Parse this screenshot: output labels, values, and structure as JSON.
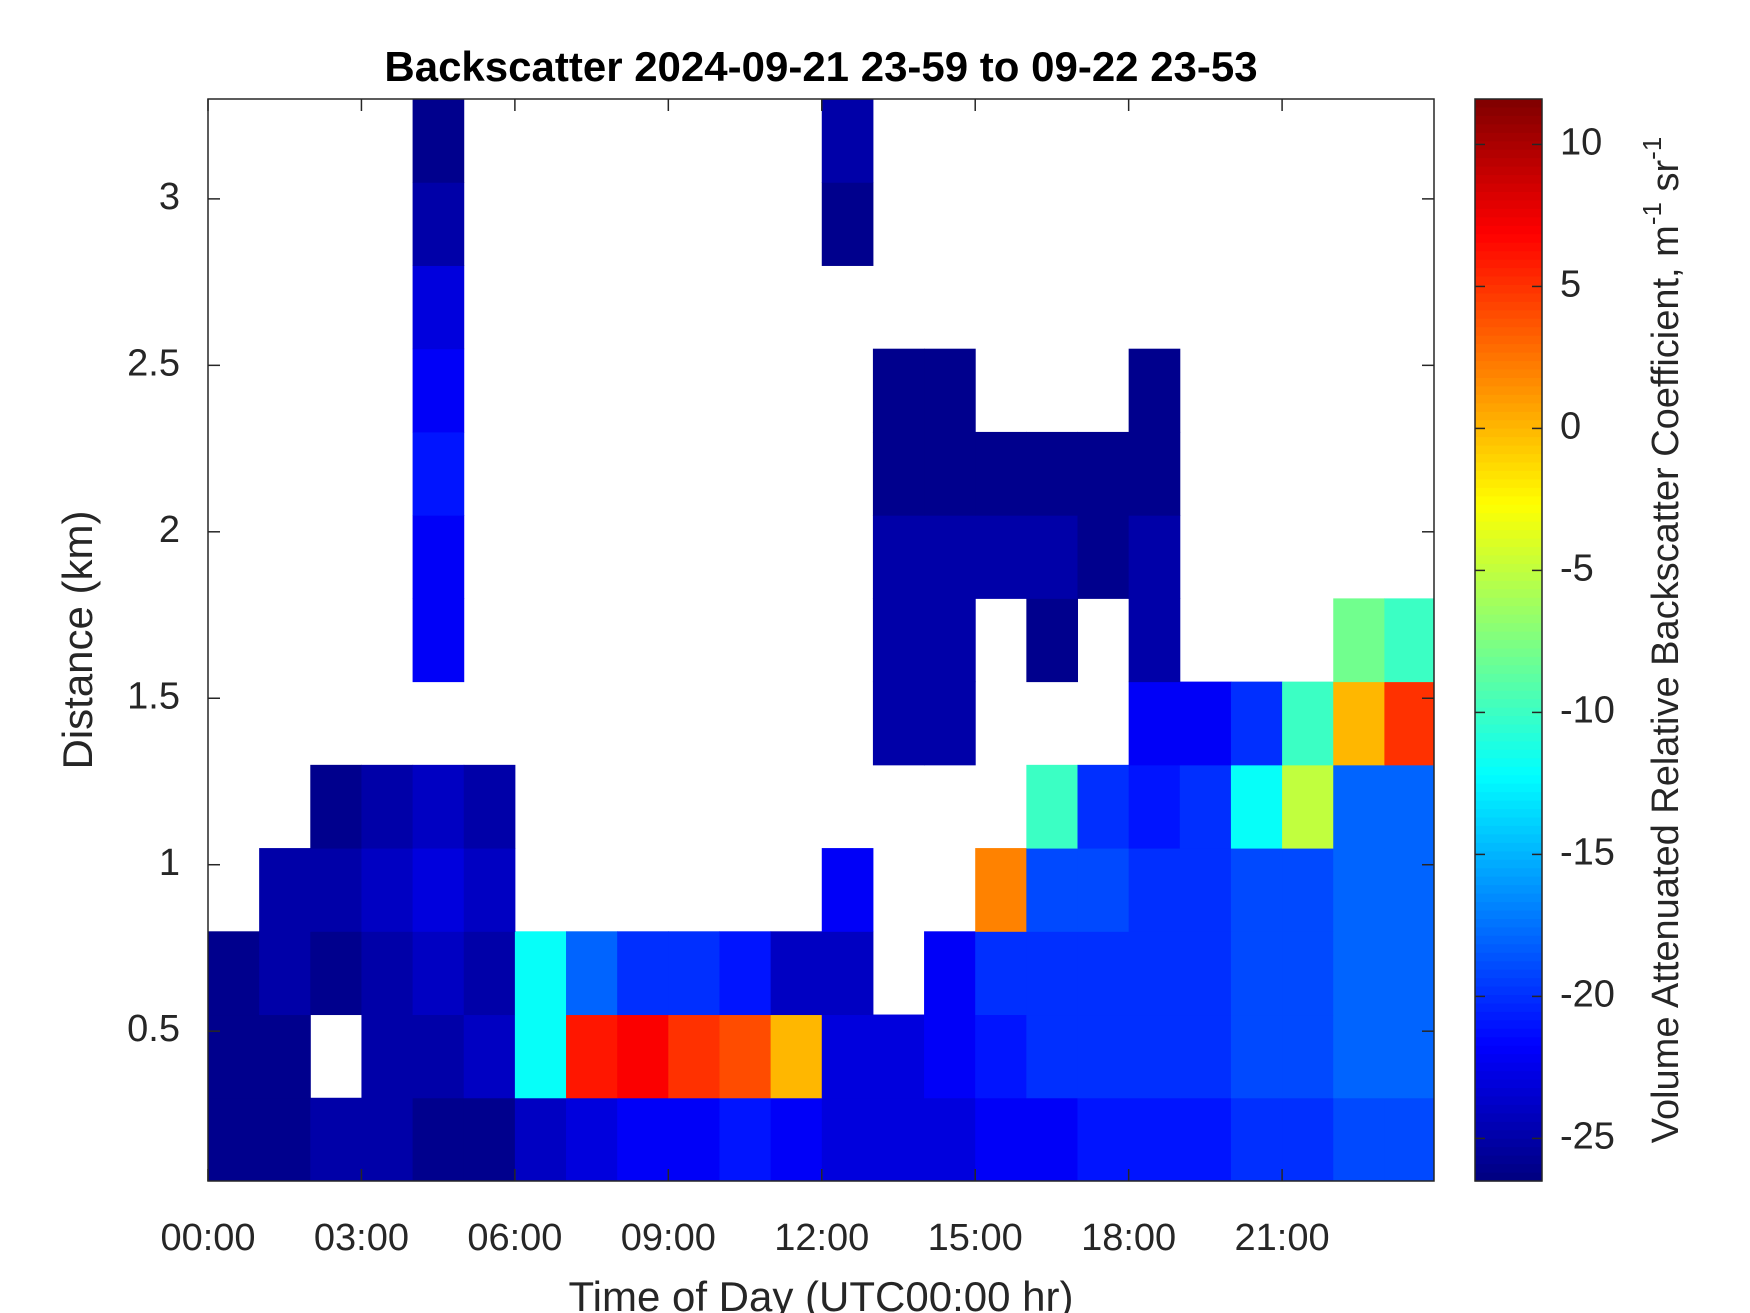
{
  "chart_data": {
    "type": "heatmap",
    "title": "Backscatter 2024-09-21 23-59 to 09-22 23-53",
    "xlabel": "Time of Day (UTC00:00 hr)",
    "ylabel": "Distance (km)",
    "x": [
      0,
      1,
      2,
      3,
      4,
      5,
      6,
      7,
      8,
      9,
      10,
      11,
      12,
      13,
      14,
      15,
      16,
      17,
      18,
      19,
      20,
      21,
      22,
      23,
      24
    ],
    "y": [
      0.05,
      0.3,
      0.55,
      0.8,
      1.05,
      1.3,
      1.55,
      1.8,
      2.05,
      2.3,
      2.55,
      2.8,
      3.05,
      3.3
    ],
    "values": [
      [
        -26,
        -26,
        -25,
        -25,
        -26,
        -26,
        -24,
        -23,
        -22,
        -22,
        -21,
        -22,
        -23,
        -23,
        -23,
        -22,
        -22,
        -21,
        -21,
        -21,
        -20,
        -20,
        -19,
        -19
      ],
      [
        -26,
        -26,
        null,
        -25,
        -25,
        -24,
        -12,
        6,
        7,
        5,
        4,
        0,
        -23,
        -23,
        -22,
        -21,
        -20,
        -20,
        -20,
        -20,
        -19,
        -19,
        -18,
        -18
      ],
      [
        -26,
        -25,
        -26,
        -25,
        -24,
        -25,
        -12,
        -18,
        -20,
        -20,
        -21,
        -24,
        -24,
        null,
        -22,
        -20,
        -20,
        -20,
        -20,
        -20,
        -19,
        -19,
        -18,
        -18
      ],
      [
        null,
        -25,
        -25,
        -24,
        -23,
        -24,
        null,
        null,
        null,
        null,
        null,
        null,
        -22,
        null,
        null,
        2,
        -19,
        -19,
        -20,
        -20,
        -19,
        -19,
        -18,
        -18
      ],
      [
        null,
        null,
        -26,
        -25,
        -24,
        -25,
        null,
        null,
        null,
        null,
        null,
        null,
        null,
        null,
        null,
        null,
        -10,
        -20,
        -21,
        -20,
        -12,
        -5,
        -18,
        -18
      ],
      [
        null,
        null,
        null,
        null,
        null,
        null,
        null,
        null,
        null,
        null,
        null,
        null,
        null,
        -25,
        -25,
        null,
        null,
        null,
        -22,
        -22,
        -20,
        -10,
        0,
        5
      ],
      [
        null,
        null,
        null,
        null,
        -22,
        null,
        null,
        null,
        null,
        null,
        null,
        null,
        null,
        -25,
        -25,
        null,
        -26,
        null,
        -25,
        null,
        null,
        null,
        -8,
        -10
      ],
      [
        null,
        null,
        null,
        null,
        -22,
        null,
        null,
        null,
        null,
        null,
        null,
        null,
        null,
        -25,
        -25,
        -25,
        -25,
        -26,
        -25,
        null,
        null,
        null,
        null,
        null
      ],
      [
        null,
        null,
        null,
        null,
        -21,
        null,
        null,
        null,
        null,
        null,
        null,
        null,
        null,
        -26,
        -26,
        -26,
        -26,
        -26,
        -26,
        null,
        null,
        null,
        null,
        null
      ],
      [
        null,
        null,
        null,
        null,
        -22,
        null,
        null,
        null,
        null,
        null,
        null,
        null,
        null,
        -26,
        -26,
        null,
        null,
        null,
        -26,
        null,
        null,
        null,
        null,
        null
      ],
      [
        null,
        null,
        null,
        null,
        -23,
        null,
        null,
        null,
        null,
        null,
        null,
        null,
        null,
        null,
        null,
        null,
        null,
        null,
        null,
        null,
        null,
        null,
        null,
        null
      ],
      [
        null,
        null,
        null,
        null,
        -25,
        null,
        null,
        null,
        null,
        null,
        null,
        null,
        -26,
        null,
        null,
        null,
        null,
        null,
        null,
        null,
        null,
        null,
        null,
        null
      ],
      [
        null,
        null,
        null,
        null,
        -26,
        null,
        null,
        null,
        null,
        null,
        null,
        null,
        -25,
        null,
        null,
        null,
        null,
        null,
        null,
        null,
        null,
        null,
        null,
        null
      ]
    ],
    "xlim": [
      0,
      23.97
    ],
    "ylim": [
      0.05,
      3.3
    ],
    "xticks": [
      {
        "value": 0,
        "label": "00:00"
      },
      {
        "value": 3,
        "label": "03:00"
      },
      {
        "value": 6,
        "label": "06:00"
      },
      {
        "value": 9,
        "label": "09:00"
      },
      {
        "value": 12,
        "label": "12:00"
      },
      {
        "value": 15,
        "label": "15:00"
      },
      {
        "value": 18,
        "label": "18:00"
      },
      {
        "value": 21,
        "label": "21:00"
      }
    ],
    "yticks": [
      0.5,
      1,
      1.5,
      2,
      2.5,
      3
    ],
    "colormap": "jet",
    "clim": [
      -26.5,
      11.6
    ],
    "cticks": [
      -25,
      -20,
      -15,
      -10,
      -5,
      0,
      5,
      10
    ],
    "colorbar_label": [
      "Volume Attenuated Relative Backscatter Coefficient, m",
      "-1",
      " sr",
      "-1"
    ]
  }
}
